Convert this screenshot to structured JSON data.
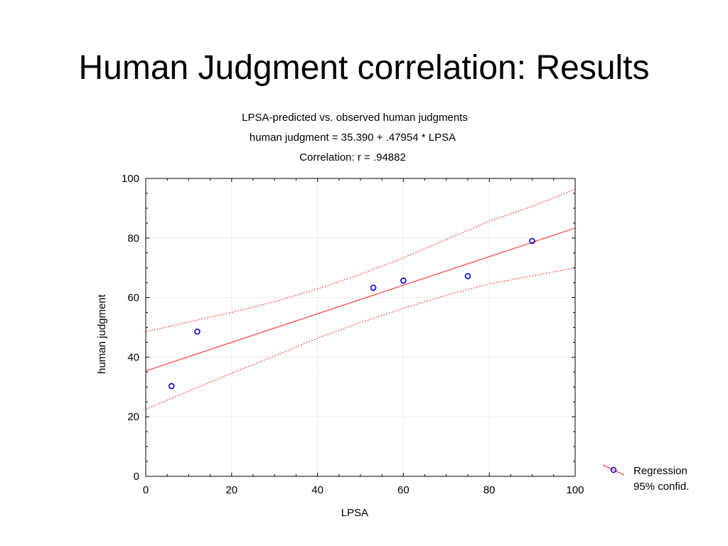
{
  "slide": {
    "title": "Human Judgment correlation: Results"
  },
  "chart_data": {
    "type": "scatter",
    "title": "LPSA-predicted vs. observed human judgments",
    "subtitle_lines": [
      "human judgment = 35.390 + .47954 * LPSA",
      "Correlation: r = .94882"
    ],
    "xlabel": "LPSA",
    "ylabel": "human judgment",
    "xlim": [
      0,
      100
    ],
    "ylim": [
      0,
      100
    ],
    "xticks": [
      0,
      20,
      40,
      60,
      80,
      100
    ],
    "yticks": [
      0,
      20,
      40,
      60,
      80,
      100
    ],
    "grid": true,
    "legend_position": "bottom-right, outside plot",
    "legend": [
      "Regression",
      "95% confid."
    ],
    "points": [
      {
        "x": 6,
        "y": 30.3
      },
      {
        "x": 12,
        "y": 48.6
      },
      {
        "x": 53,
        "y": 63.3
      },
      {
        "x": 60,
        "y": 65.7
      },
      {
        "x": 75,
        "y": 67.2
      },
      {
        "x": 90,
        "y": 79.0
      }
    ],
    "regression": {
      "intercept": 35.39,
      "slope": 0.47954
    },
    "confidence_upper": [
      {
        "x": 0,
        "y": 48.5
      },
      {
        "x": 10,
        "y": 51.8
      },
      {
        "x": 20,
        "y": 55.0
      },
      {
        "x": 30,
        "y": 58.6
      },
      {
        "x": 40,
        "y": 62.9
      },
      {
        "x": 50,
        "y": 67.8
      },
      {
        "x": 60,
        "y": 73.4
      },
      {
        "x": 70,
        "y": 79.5
      },
      {
        "x": 80,
        "y": 85.6
      },
      {
        "x": 90,
        "y": 90.6
      },
      {
        "x": 100,
        "y": 96.4
      }
    ],
    "confidence_lower": [
      {
        "x": 0,
        "y": 22.5
      },
      {
        "x": 10,
        "y": 28.6
      },
      {
        "x": 20,
        "y": 34.6
      },
      {
        "x": 30,
        "y": 40.4
      },
      {
        "x": 40,
        "y": 46.4
      },
      {
        "x": 50,
        "y": 51.6
      },
      {
        "x": 60,
        "y": 56.4
      },
      {
        "x": 70,
        "y": 60.8
      },
      {
        "x": 80,
        "y": 64.6
      },
      {
        "x": 90,
        "y": 67.3
      },
      {
        "x": 100,
        "y": 70.0
      }
    ],
    "colors": {
      "point": "#0000cc",
      "regression": "#ff2020",
      "grid": "#cccccc"
    }
  }
}
